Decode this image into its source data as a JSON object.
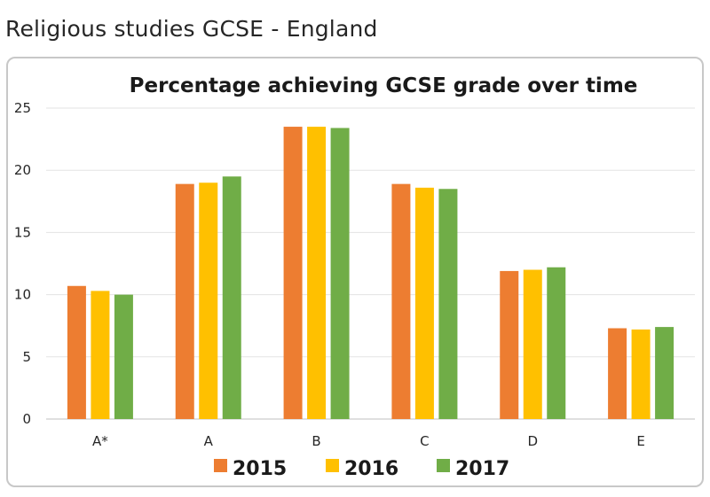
{
  "page": {
    "heading": "Religious studies GCSE - England"
  },
  "chart_data": {
    "type": "bar",
    "title": "Percentage achieving GCSE grade over time",
    "xlabel": "",
    "ylabel": "",
    "ylim": [
      0,
      25
    ],
    "yticks": [
      "0",
      "5",
      "10",
      "15",
      "20",
      "25"
    ],
    "categories": [
      "A*",
      "A",
      "B",
      "C",
      "D",
      "E"
    ],
    "series": [
      {
        "name": "2015",
        "color": "#ed7d31",
        "values": [
          10.7,
          18.9,
          23.5,
          18.9,
          11.9,
          7.3
        ]
      },
      {
        "name": "2016",
        "color": "#ffc000",
        "values": [
          10.3,
          19.0,
          23.5,
          18.6,
          12.0,
          7.2
        ]
      },
      {
        "name": "2017",
        "color": "#70ad47",
        "values": [
          10.0,
          19.5,
          23.4,
          18.5,
          12.2,
          7.4
        ]
      }
    ],
    "grid": true,
    "legend": "bottom"
  }
}
